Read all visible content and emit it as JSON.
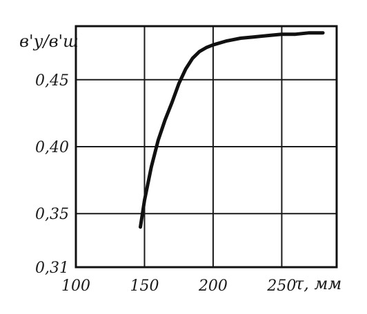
{
  "chart_data": {
    "type": "line",
    "ylabel": "в'у/в'ш",
    "xlabel": "τ, мм",
    "xlim": [
      100,
      290
    ],
    "ylim": [
      0.31,
      0.49
    ],
    "x_ticks": [
      100,
      150,
      200,
      250
    ],
    "x_tick_labels": [
      "100",
      "150",
      "200",
      "250"
    ],
    "y_ticks": [
      0.31,
      0.35,
      0.4,
      0.45
    ],
    "y_tick_labels": [
      "0,31",
      "0,35",
      "0,40",
      "0,45"
    ],
    "x_gridlines": [
      150,
      200,
      250
    ],
    "y_gridlines": [
      0.35,
      0.4,
      0.45
    ],
    "grid": true,
    "series": [
      {
        "x": [
          147,
          150,
          155,
          160,
          165,
          170,
          175,
          180,
          185,
          190,
          195,
          200,
          210,
          220,
          230,
          240,
          250,
          260,
          270,
          280
        ],
        "y": [
          0.34,
          0.36,
          0.385,
          0.405,
          0.42,
          0.433,
          0.447,
          0.458,
          0.466,
          0.471,
          0.474,
          0.476,
          0.479,
          0.481,
          0.482,
          0.483,
          0.484,
          0.484,
          0.485,
          0.485
        ],
        "color": "#111111"
      }
    ]
  }
}
